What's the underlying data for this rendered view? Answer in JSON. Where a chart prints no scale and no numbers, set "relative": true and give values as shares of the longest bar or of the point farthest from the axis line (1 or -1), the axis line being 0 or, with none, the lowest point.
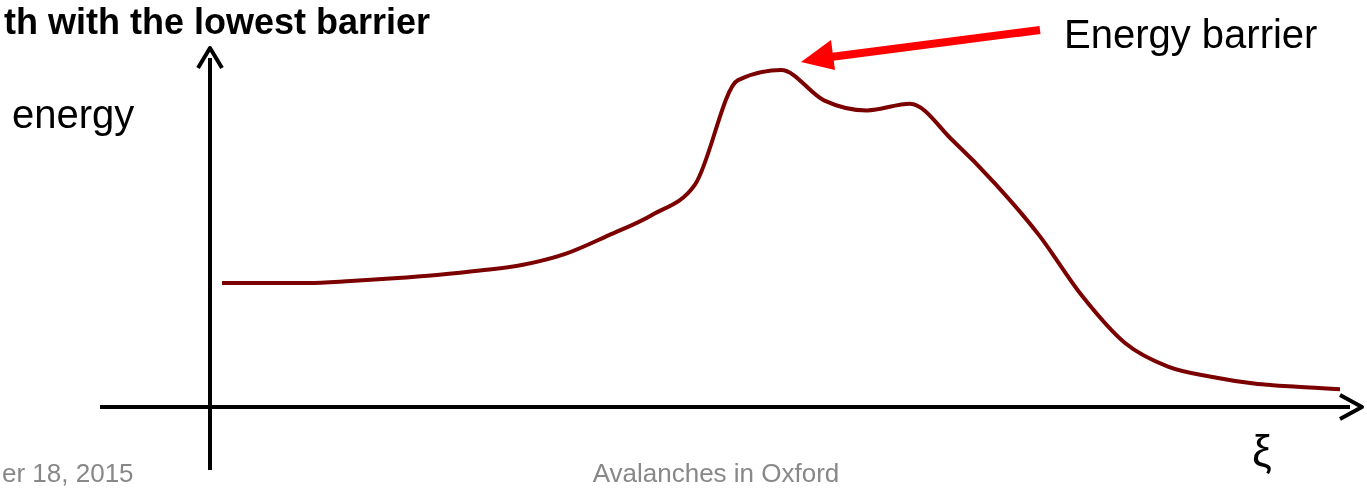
{
  "chart_data": {
    "type": "line",
    "relative": true,
    "title": "th with the lowest barrier",
    "ylabel": "energy",
    "xlabel": "ξ",
    "categories": [
      null,
      null,
      null,
      null,
      null,
      null,
      null,
      null,
      null,
      null,
      null,
      null,
      null,
      null,
      null,
      null,
      null,
      null,
      null,
      null,
      null,
      null,
      null,
      null,
      null,
      null,
      null
    ],
    "series": [
      {
        "color": "#7b0000",
        "values": [
          0.368,
          0.368,
          0.368,
          0.374,
          0.382,
          0.392,
          0.405,
          0.422,
          0.455,
          0.51,
          0.57,
          0.66,
          0.97,
          1,
          0.91,
          0.88,
          0.9,
          0.79,
          0.66,
          0.51,
          0.33,
          0.19,
          0.12,
          0.09,
          0.07,
          0.06,
          0.053
        ]
      }
    ],
    "annotations": [
      "Energy barrier",
      "er 18, 2015",
      "Avalanches in Oxford"
    ],
    "marker": "none"
  }
}
